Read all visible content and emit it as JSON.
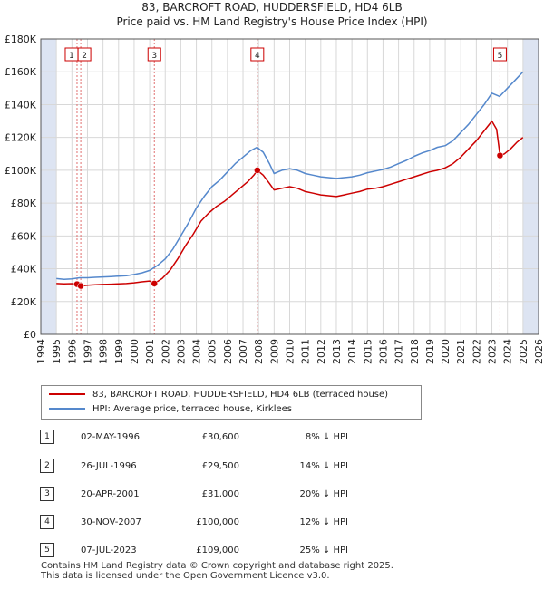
{
  "title": "83, BARCROFT ROAD, HUDDERSFIELD, HD4 6LB",
  "subtitle": "Price paid vs. HM Land Registry's House Price Index (HPI)",
  "legend": {
    "property_label": "83, BARCROFT ROAD, HUDDERSFIELD, HD4 6LB (terraced house)",
    "hpi_label": "HPI: Average price, terraced house, Kirklees"
  },
  "colors": {
    "property": "#cc0000",
    "hpi": "#5588cc",
    "shade": "#dde4f2",
    "grid": "#d8d8d8"
  },
  "sales": [
    {
      "num": "1",
      "date": "02-MAY-1996",
      "price": "£30,600",
      "hpi": "8% ↓ HPI"
    },
    {
      "num": "2",
      "date": "26-JUL-1996",
      "price": "£29,500",
      "hpi": "14% ↓ HPI"
    },
    {
      "num": "3",
      "date": "20-APR-2001",
      "price": "£31,000",
      "hpi": "20% ↓ HPI"
    },
    {
      "num": "4",
      "date": "30-NOV-2007",
      "price": "£100,000",
      "hpi": "12% ↓ HPI"
    },
    {
      "num": "5",
      "date": "07-JUL-2023",
      "price": "£109,000",
      "hpi": "25% ↓ HPI"
    }
  ],
  "footer": {
    "line1": "Contains HM Land Registry data © Crown copyright and database right 2025.",
    "line2": "This data is licensed under the Open Government Licence v3.0."
  },
  "chart_data": {
    "type": "line",
    "xlim": [
      1994,
      2026
    ],
    "ylim": [
      0,
      180000
    ],
    "ytick_labels": [
      "£0",
      "£20K",
      "£40K",
      "£60K",
      "£80K",
      "£100K",
      "£120K",
      "£140K",
      "£160K",
      "£180K"
    ],
    "ytick_values": [
      0,
      20000,
      40000,
      60000,
      80000,
      100000,
      120000,
      140000,
      160000,
      180000
    ],
    "xtick_labels": [
      "1994",
      "1995",
      "1996",
      "1997",
      "1998",
      "1999",
      "2000",
      "2001",
      "2002",
      "2003",
      "2004",
      "2005",
      "2006",
      "2007",
      "2008",
      "2009",
      "2010",
      "2011",
      "2012",
      "2013",
      "2014",
      "2015",
      "2016",
      "2017",
      "2018",
      "2019",
      "2020",
      "2021",
      "2022",
      "2023",
      "2024",
      "2025",
      "2026"
    ],
    "shaded_ranges": [
      [
        1994,
        1995.0
      ],
      [
        2025.0,
        2026
      ]
    ],
    "sale_markers": [
      {
        "label": "1",
        "x": 1996.33,
        "y": 30600
      },
      {
        "label": "2",
        "x": 1996.57,
        "y": 29500
      },
      {
        "label": "3",
        "x": 2001.3,
        "y": 31000
      },
      {
        "label": "4",
        "x": 2007.92,
        "y": 100000
      },
      {
        "label": "5",
        "x": 2023.52,
        "y": 109000
      }
    ],
    "series": [
      {
        "name": "HPI: Average price, terraced house, Kirklees",
        "x": [
          1995.0,
          1995.5,
          1996.0,
          1996.5,
          1997.0,
          1997.5,
          1998.0,
          1998.5,
          1999.0,
          1999.5,
          2000.0,
          2000.5,
          2001.0,
          2001.5,
          2002.0,
          2002.5,
          2003.0,
          2003.5,
          2004.0,
          2004.5,
          2005.0,
          2005.5,
          2006.0,
          2006.5,
          2007.0,
          2007.5,
          2007.9,
          2008.3,
          2008.7,
          2009.0,
          2009.5,
          2010.0,
          2010.5,
          2011.0,
          2011.5,
          2012.0,
          2012.5,
          2013.0,
          2013.5,
          2014.0,
          2014.5,
          2015.0,
          2015.5,
          2016.0,
          2016.5,
          2017.0,
          2017.5,
          2018.0,
          2018.5,
          2019.0,
          2019.5,
          2020.0,
          2020.5,
          2021.0,
          2021.5,
          2022.0,
          2022.5,
          2023.0,
          2023.5,
          2024.0,
          2024.5,
          2025.0
        ],
        "y": [
          34000,
          33500,
          33800,
          34500,
          34500,
          34800,
          35000,
          35200,
          35500,
          35800,
          36500,
          37500,
          39000,
          42000,
          46000,
          52000,
          60000,
          68000,
          77000,
          84000,
          90000,
          94000,
          99000,
          104000,
          108000,
          112000,
          114000,
          111000,
          104000,
          98000,
          100000,
          101000,
          100000,
          98000,
          97000,
          96000,
          95500,
          95000,
          95500,
          96000,
          97000,
          98500,
          99500,
          100500,
          102000,
          104000,
          106000,
          108500,
          110500,
          112000,
          114000,
          115000,
          118000,
          123000,
          128000,
          134000,
          140000,
          147000,
          145000,
          150000,
          155000,
          160000
        ]
      },
      {
        "name": "83, BARCROFT ROAD, HUDDERSFIELD, HD4 6LB (terraced house)",
        "x": [
          1995.0,
          1995.5,
          1996.0,
          1996.33,
          1996.57,
          1997.0,
          1997.5,
          1998.0,
          1998.5,
          1999.0,
          1999.5,
          2000.0,
          2000.5,
          2001.0,
          2001.3,
          2001.8,
          2002.3,
          2002.8,
          2003.3,
          2003.8,
          2004.3,
          2004.8,
          2005.3,
          2005.8,
          2006.3,
          2006.8,
          2007.3,
          2007.7,
          2007.92,
          2008.3,
          2008.7,
          2009.0,
          2009.5,
          2010.0,
          2010.5,
          2011.0,
          2011.5,
          2012.0,
          2012.5,
          2013.0,
          2013.5,
          2014.0,
          2014.5,
          2015.0,
          2015.5,
          2016.0,
          2016.5,
          2017.0,
          2017.5,
          2018.0,
          2018.5,
          2019.0,
          2019.5,
          2020.0,
          2020.5,
          2021.0,
          2021.5,
          2022.0,
          2022.5,
          2023.0,
          2023.3,
          2023.52,
          2023.8,
          2024.2,
          2024.6,
          2025.0
        ],
        "y": [
          31000,
          30800,
          30900,
          30600,
          29500,
          30000,
          30200,
          30400,
          30600,
          30800,
          31000,
          31400,
          32000,
          32500,
          31000,
          34000,
          39000,
          46000,
          54000,
          61000,
          69000,
          74000,
          78000,
          81000,
          85000,
          89000,
          93000,
          97000,
          100000,
          97000,
          92000,
          88000,
          89000,
          90000,
          89000,
          87000,
          86000,
          85000,
          84500,
          84000,
          85000,
          86000,
          87000,
          88500,
          89000,
          90000,
          91500,
          93000,
          94500,
          96000,
          97500,
          99000,
          100000,
          101500,
          104000,
          108000,
          113000,
          118000,
          124000,
          130000,
          125000,
          109000,
          110000,
          113000,
          117000,
          120000
        ]
      }
    ]
  }
}
